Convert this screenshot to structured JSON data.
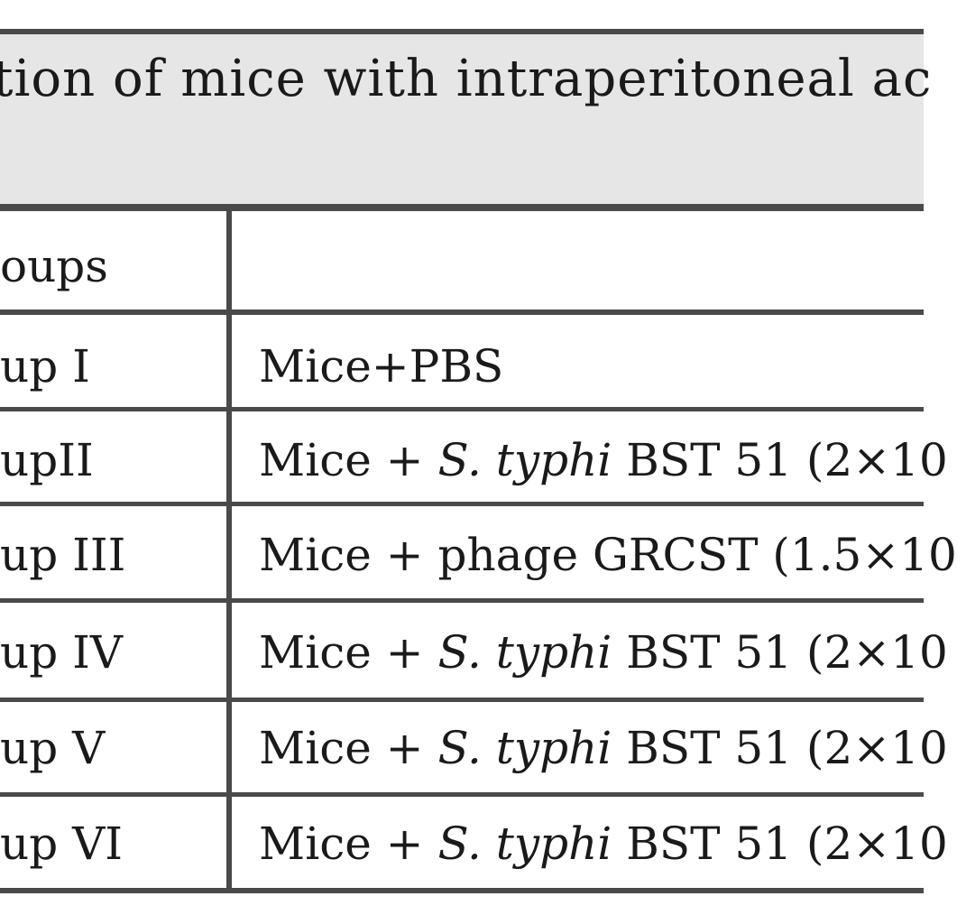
{
  "table": {
    "caption": "tion of mice with intraperitoneal ac",
    "header": {
      "left": "oups",
      "right": ""
    },
    "rows": [
      {
        "group": "up I",
        "pre": "Mice+PBS",
        "species": "",
        "post": ""
      },
      {
        "group": "upII",
        "pre": "Mice + ",
        "species": "S. typhi",
        "post": " BST 51 (2×10"
      },
      {
        "group": "up III",
        "pre": "Mice + phage GRCST (1.5×10",
        "species": "",
        "post": ""
      },
      {
        "group": "up IV",
        "pre": "Mice + ",
        "species": "S. typhi",
        "post": " BST 51 (2×10"
      },
      {
        "group": "up V",
        "pre": "Mice + ",
        "species": "S. typhi",
        "post": " BST 51 (2×10"
      },
      {
        "group": "up VI",
        "pre": "Mice + ",
        "species": "S. typhi",
        "post": " BST 51 (2×10"
      }
    ]
  },
  "colors": {
    "caption_background": "#e6e6e6",
    "rule": "#4a4a4a",
    "text": "#1a1a1a"
  }
}
